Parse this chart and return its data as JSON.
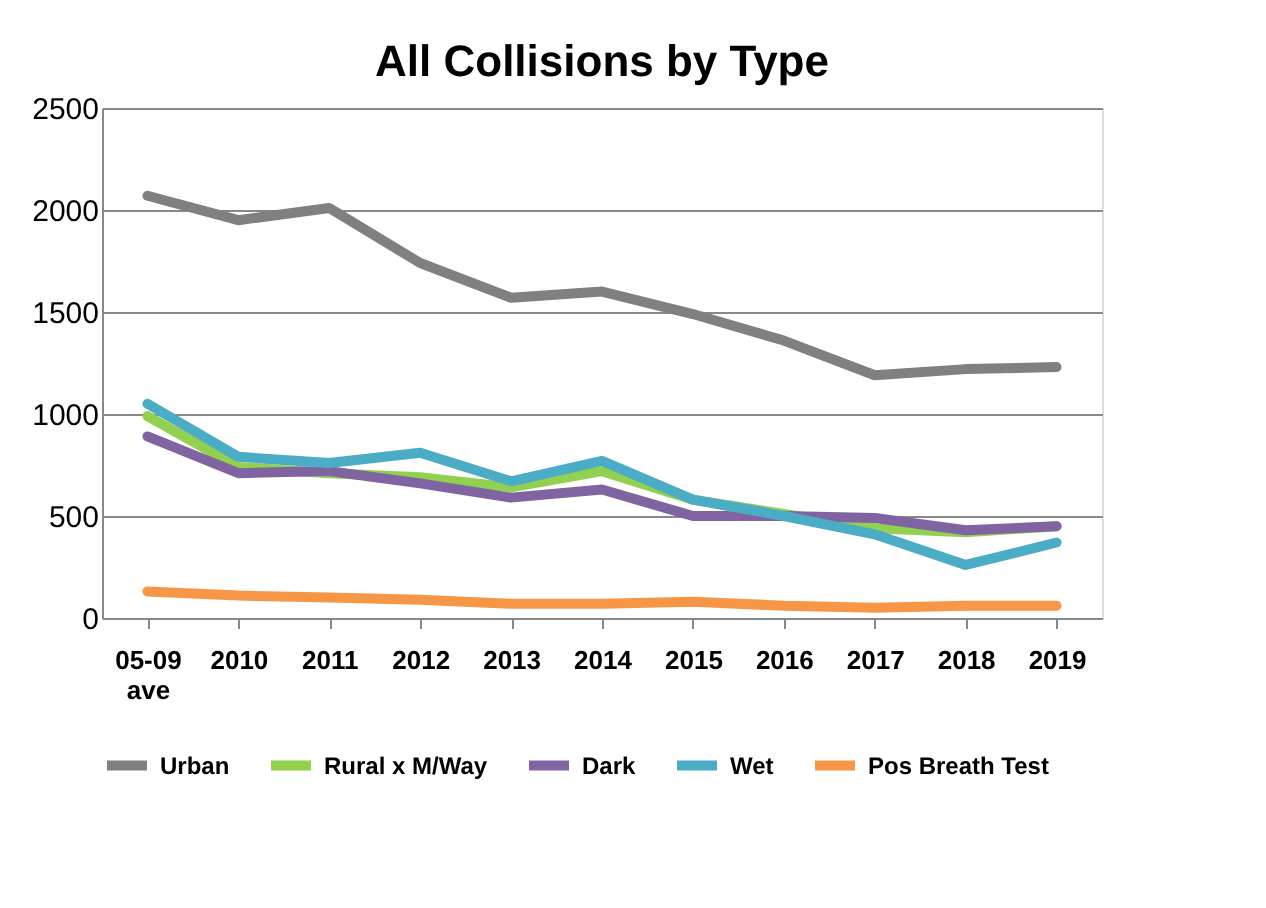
{
  "chart_data": {
    "type": "line",
    "title": "All Collisions by Type",
    "categories": [
      "05-09 ave",
      "2010",
      "2011",
      "2012",
      "2013",
      "2014",
      "2015",
      "2016",
      "2017",
      "2018",
      "2019"
    ],
    "series": [
      {
        "name": "Urban",
        "color": "#808080",
        "values": [
          2070,
          1950,
          2010,
          1740,
          1570,
          1600,
          1490,
          1360,
          1190,
          1220,
          1230
        ]
      },
      {
        "name": "Rural x M/Way",
        "color": "#92d050",
        "values": [
          990,
          740,
          710,
          690,
          640,
          720,
          580,
          510,
          440,
          420,
          450
        ]
      },
      {
        "name": "Dark",
        "color": "#8064a2",
        "values": [
          890,
          710,
          720,
          660,
          590,
          630,
          500,
          500,
          490,
          430,
          450
        ]
      },
      {
        "name": "Wet",
        "color": "#4bacc6",
        "values": [
          1050,
          790,
          760,
          810,
          670,
          770,
          580,
          500,
          410,
          260,
          370
        ]
      },
      {
        "name": "Pos Breath Test",
        "color": "#f79646",
        "values": [
          130,
          110,
          100,
          90,
          70,
          70,
          80,
          60,
          50,
          60,
          60
        ]
      }
    ],
    "ylim": [
      0,
      2500
    ],
    "yticks": [
      0,
      500,
      1000,
      1500,
      2000,
      2500
    ],
    "grid": "y",
    "legend": "bottom",
    "marker": "none",
    "line_style": "solid"
  }
}
